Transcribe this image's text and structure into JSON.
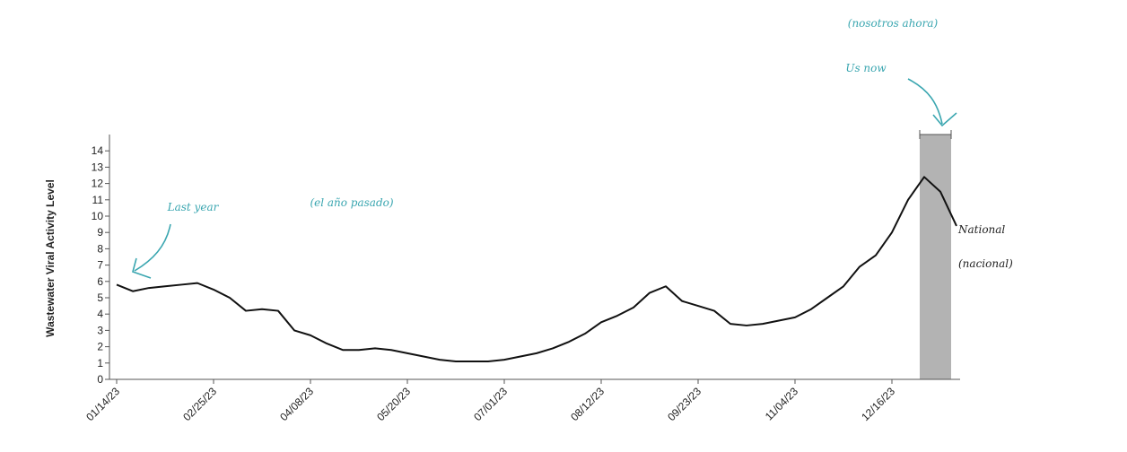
{
  "chart_data": {
    "type": "line",
    "ylabel": "Wastewater Viral Activity Level",
    "annotations": [
      "(nosotros ahora)",
      "Us now",
      "Last year",
      "(el año pasado)",
      "National",
      "(nacional)"
    ],
    "categories": [
      "01/14/23",
      null,
      null,
      null,
      null,
      null,
      "02/25/23",
      null,
      null,
      null,
      null,
      null,
      "04/08/23",
      null,
      null,
      null,
      null,
      null,
      "05/20/23",
      null,
      null,
      null,
      null,
      null,
      "07/01/23",
      null,
      null,
      null,
      null,
      null,
      "08/12/23",
      null,
      null,
      null,
      null,
      null,
      "09/23/23",
      null,
      null,
      null,
      null,
      null,
      "11/04/23",
      null,
      null,
      null,
      null,
      null,
      "12/16/23",
      null,
      null,
      null,
      null
    ],
    "series": [
      {
        "color": "#111111",
        "values": [
          5.8,
          5.4,
          5.6,
          5.7,
          5.8,
          5.9,
          5.5,
          5.0,
          4.2,
          4.3,
          4.2,
          3.0,
          2.7,
          2.2,
          1.8,
          1.8,
          1.9,
          1.8,
          1.6,
          1.4,
          1.2,
          1.1,
          1.1,
          1.1,
          1.2,
          1.4,
          1.6,
          1.9,
          2.3,
          2.8,
          3.5,
          3.9,
          4.4,
          5.3,
          5.7,
          4.8,
          4.5,
          4.2,
          3.4,
          3.3,
          3.4,
          3.6,
          3.8,
          4.3,
          5.0,
          5.7,
          6.9,
          7.6,
          9.0,
          11.0,
          12.4,
          11.5,
          9.4
        ]
      }
    ],
    "highlight": [
      50,
      52
    ],
    "highlight_color": "#b3b3b3",
    "ylim": [
      0,
      15
    ],
    "yticks": [
      0,
      1,
      2,
      3,
      4,
      5,
      6,
      7,
      8,
      9,
      10,
      11,
      12,
      13,
      14
    ]
  }
}
